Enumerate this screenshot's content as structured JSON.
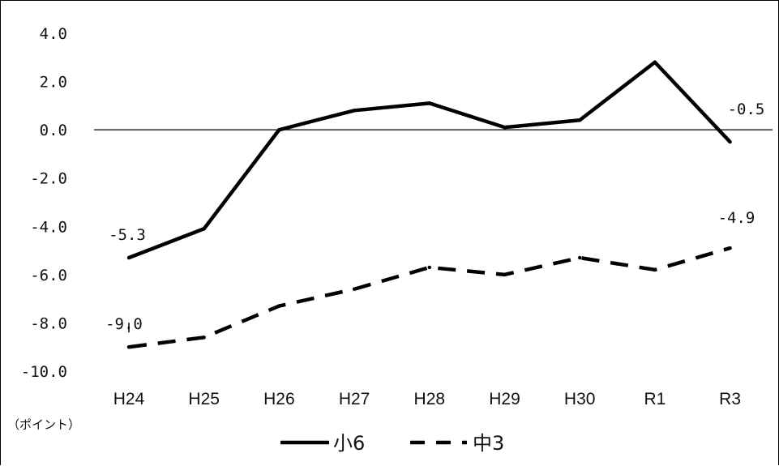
{
  "chart_data": {
    "type": "line",
    "title": "",
    "xlabel": "",
    "ylabel": "（ポイント）",
    "categories": [
      "H24",
      "H25",
      "H26",
      "H27",
      "H28",
      "H29",
      "H30",
      "R1",
      "R3"
    ],
    "ylim": [
      -10.0,
      4.0
    ],
    "yticks": [
      "4.0",
      "2.0",
      "0.0",
      "-2.0",
      "-4.0",
      "-6.0",
      "-8.0",
      "-10.0"
    ],
    "ytick_values": [
      4,
      2,
      0,
      -2,
      -4,
      -6,
      -8,
      -10
    ],
    "grid": false,
    "zero_line": true,
    "legend_position": "bottom",
    "series": [
      {
        "name": "小6",
        "style": "solid",
        "color": "#000000",
        "values": [
          -5.3,
          -4.1,
          0.0,
          0.8,
          1.1,
          0.1,
          0.4,
          2.8,
          -0.5
        ]
      },
      {
        "name": "中3",
        "style": "dashed",
        "color": "#000000",
        "values": [
          -9.0,
          -8.6,
          -7.3,
          -6.6,
          -5.7,
          -6.0,
          -5.3,
          -5.8,
          -4.9
        ]
      }
    ],
    "annotations": [
      {
        "text": "-5.3",
        "series": 0,
        "index": 0
      },
      {
        "text": "-0.5",
        "series": 0,
        "index": 8
      },
      {
        "text": "-9.0",
        "series": 1,
        "index": 0
      },
      {
        "text": "-4.9",
        "series": 1,
        "index": 8
      }
    ]
  }
}
